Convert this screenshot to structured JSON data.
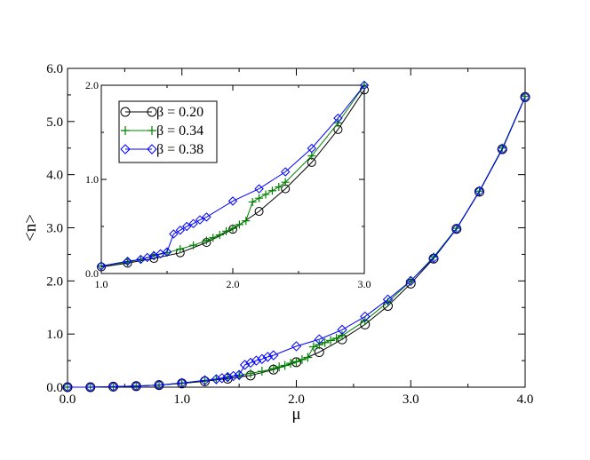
{
  "chart_data": [
    {
      "type": "line",
      "title": "",
      "xlabel": "μ",
      "ylabel": "<n>",
      "xlim": [
        0.0,
        4.0
      ],
      "ylim": [
        0.0,
        6.0
      ],
      "x_ticks": [
        "0.0",
        "1.0",
        "2.0",
        "3.0",
        "4.0"
      ],
      "y_ticks": [
        "0.0",
        "1.0",
        "2.0",
        "3.0",
        "4.0",
        "5.0",
        "6.0"
      ],
      "grid": false,
      "series": [
        {
          "name": "β = 0.20",
          "color": "#000000",
          "marker": "circle",
          "x": [
            0.0,
            0.2,
            0.4,
            0.6,
            0.8,
            1.0,
            1.2,
            1.4,
            1.6,
            1.8,
            2.0,
            2.2,
            2.4,
            2.6,
            2.8,
            3.0,
            3.2,
            3.4,
            3.6,
            3.8,
            4.0
          ],
          "y": [
            0.0,
            0.0,
            0.01,
            0.02,
            0.04,
            0.07,
            0.11,
            0.16,
            0.22,
            0.33,
            0.47,
            0.66,
            0.9,
            1.18,
            1.53,
            1.95,
            2.42,
            2.98,
            3.68,
            4.48,
            5.46
          ]
        },
        {
          "name": "β = 0.34",
          "color": "#008000",
          "marker": "plus",
          "x": [
            0.0,
            0.2,
            0.4,
            0.6,
            0.8,
            1.0,
            1.2,
            1.3,
            1.4,
            1.5,
            1.6,
            1.7,
            1.8,
            1.85,
            1.9,
            1.95,
            2.0,
            2.05,
            2.1,
            2.15,
            2.2,
            2.25,
            2.3,
            2.35,
            2.4,
            2.6,
            2.8,
            3.0,
            3.2,
            3.4,
            3.6,
            3.8,
            4.0
          ],
          "y": [
            0.0,
            0.0,
            0.01,
            0.02,
            0.04,
            0.08,
            0.12,
            0.15,
            0.19,
            0.22,
            0.26,
            0.3,
            0.35,
            0.38,
            0.41,
            0.45,
            0.48,
            0.52,
            0.56,
            0.76,
            0.8,
            0.84,
            0.88,
            0.92,
            0.97,
            1.25,
            1.6,
            2.0,
            2.45,
            2.99,
            3.69,
            4.5,
            5.47
          ]
        },
        {
          "name": "β = 0.38",
          "color": "#0000ff",
          "marker": "diamond",
          "x": [
            0.0,
            0.2,
            0.4,
            0.6,
            0.8,
            1.0,
            1.2,
            1.3,
            1.35,
            1.4,
            1.45,
            1.5,
            1.55,
            1.6,
            1.65,
            1.7,
            1.75,
            1.8,
            2.0,
            2.2,
            2.4,
            2.6,
            2.8,
            3.0,
            3.2,
            3.4,
            3.6,
            3.8,
            4.0
          ],
          "y": [
            0.0,
            0.0,
            0.01,
            0.02,
            0.04,
            0.08,
            0.13,
            0.15,
            0.17,
            0.19,
            0.21,
            0.23,
            0.42,
            0.46,
            0.5,
            0.53,
            0.57,
            0.6,
            0.77,
            0.9,
            1.08,
            1.33,
            1.65,
            2.0,
            2.43,
            2.98,
            3.69,
            4.48,
            5.46
          ]
        }
      ]
    },
    {
      "type": "line",
      "title": "",
      "xlabel": "",
      "ylabel": "",
      "xlim": [
        1.0,
        3.0
      ],
      "ylim": [
        0.0,
        2.0
      ],
      "x_ticks": [
        "1.0",
        "2.0",
        "3.0"
      ],
      "y_ticks": [
        "0.0",
        "1.0",
        "2.0"
      ],
      "grid": false,
      "legend_position": "top-left",
      "series": [
        {
          "name": "β = 0.20",
          "color": "#000000",
          "marker": "circle",
          "x": [
            1.0,
            1.2,
            1.4,
            1.6,
            1.8,
            2.0,
            2.2,
            2.4,
            2.6,
            2.8,
            3.0
          ],
          "y": [
            0.07,
            0.11,
            0.16,
            0.22,
            0.33,
            0.47,
            0.66,
            0.9,
            1.18,
            1.53,
            1.95
          ]
        },
        {
          "name": "β = 0.34",
          "color": "#008000",
          "marker": "plus",
          "x": [
            1.0,
            1.2,
            1.3,
            1.4,
            1.5,
            1.6,
            1.7,
            1.8,
            1.85,
            1.9,
            1.95,
            2.0,
            2.05,
            2.1,
            2.15,
            2.2,
            2.25,
            2.3,
            2.35,
            2.4,
            2.6,
            2.8,
            3.0
          ],
          "y": [
            0.08,
            0.12,
            0.15,
            0.19,
            0.22,
            0.26,
            0.3,
            0.35,
            0.38,
            0.41,
            0.45,
            0.48,
            0.52,
            0.56,
            0.76,
            0.8,
            0.84,
            0.88,
            0.92,
            0.97,
            1.25,
            1.6,
            2.0
          ]
        },
        {
          "name": "β = 0.38",
          "color": "#0000ff",
          "marker": "diamond",
          "x": [
            1.0,
            1.2,
            1.3,
            1.35,
            1.4,
            1.45,
            1.5,
            1.55,
            1.6,
            1.65,
            1.7,
            1.75,
            1.8,
            2.0,
            2.2,
            2.4,
            2.6,
            2.8,
            3.0
          ],
          "y": [
            0.08,
            0.13,
            0.15,
            0.17,
            0.19,
            0.21,
            0.23,
            0.42,
            0.46,
            0.5,
            0.53,
            0.57,
            0.6,
            0.77,
            0.9,
            1.08,
            1.33,
            1.65,
            2.0
          ]
        }
      ]
    }
  ]
}
